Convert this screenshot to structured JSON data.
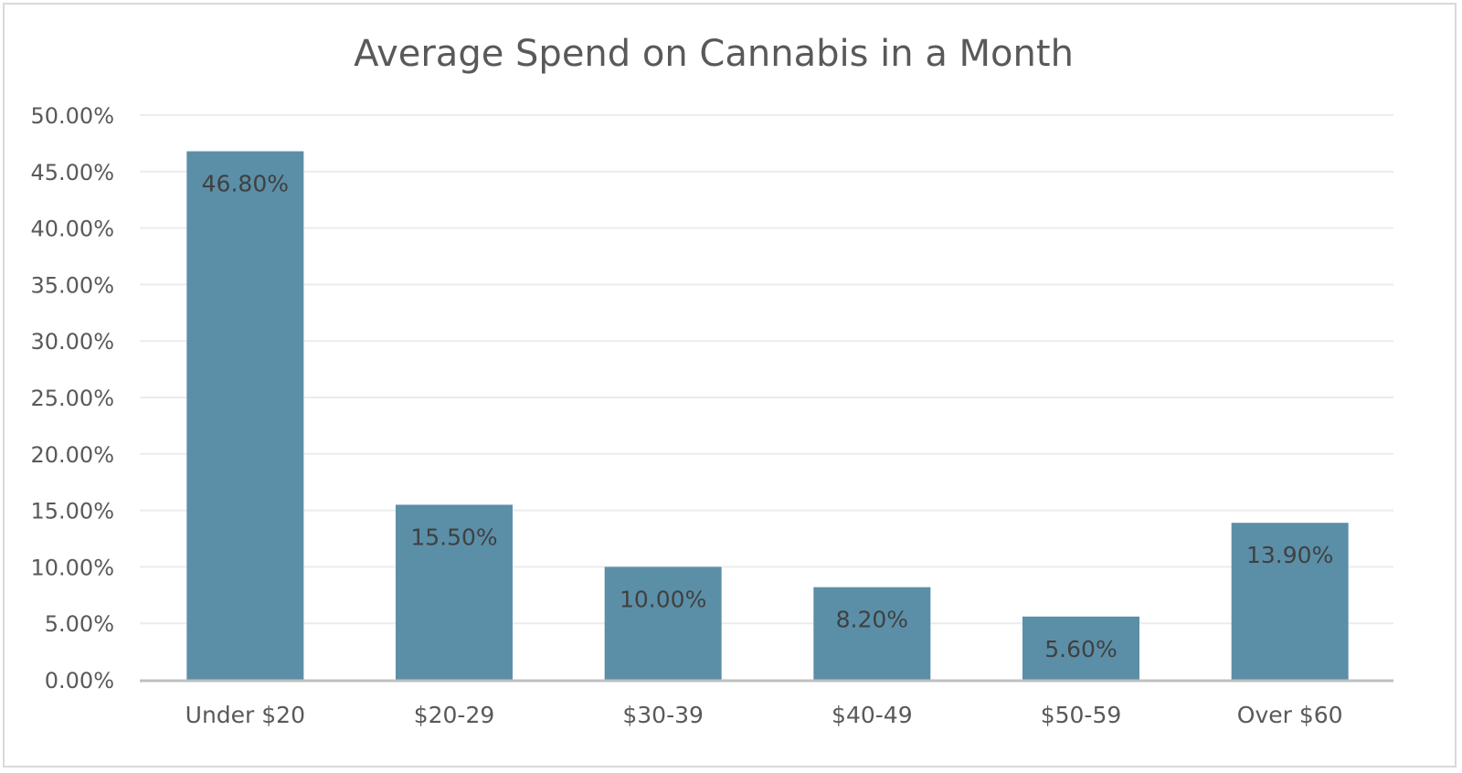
{
  "chart_data": {
    "type": "bar",
    "title": "Average Spend on Cannabis in a Month",
    "xlabel": "",
    "ylabel": "",
    "categories": [
      "Under $20",
      "$20-29",
      "$30-39",
      "$40-49",
      "$50-59",
      "Over $60"
    ],
    "values": [
      46.8,
      15.5,
      10.0,
      8.2,
      5.6,
      13.9
    ],
    "data_labels": [
      "46.80%",
      "15.50%",
      "10.00%",
      "8.20%",
      "5.60%",
      "13.90%"
    ],
    "ylim": [
      0,
      50
    ],
    "yticks": [
      0,
      5,
      10,
      15,
      20,
      25,
      30,
      35,
      40,
      45,
      50
    ],
    "ytick_labels": [
      "0.00%",
      "5.00%",
      "10.00%",
      "15.00%",
      "20.00%",
      "25.00%",
      "30.00%",
      "35.00%",
      "40.00%",
      "45.00%",
      "50.00%"
    ],
    "grid": true,
    "legend": "none",
    "colors": {
      "bar": "#5b8fa8",
      "grid": "#ececec",
      "axis": "#bfbfbf",
      "text": "#595959"
    }
  }
}
